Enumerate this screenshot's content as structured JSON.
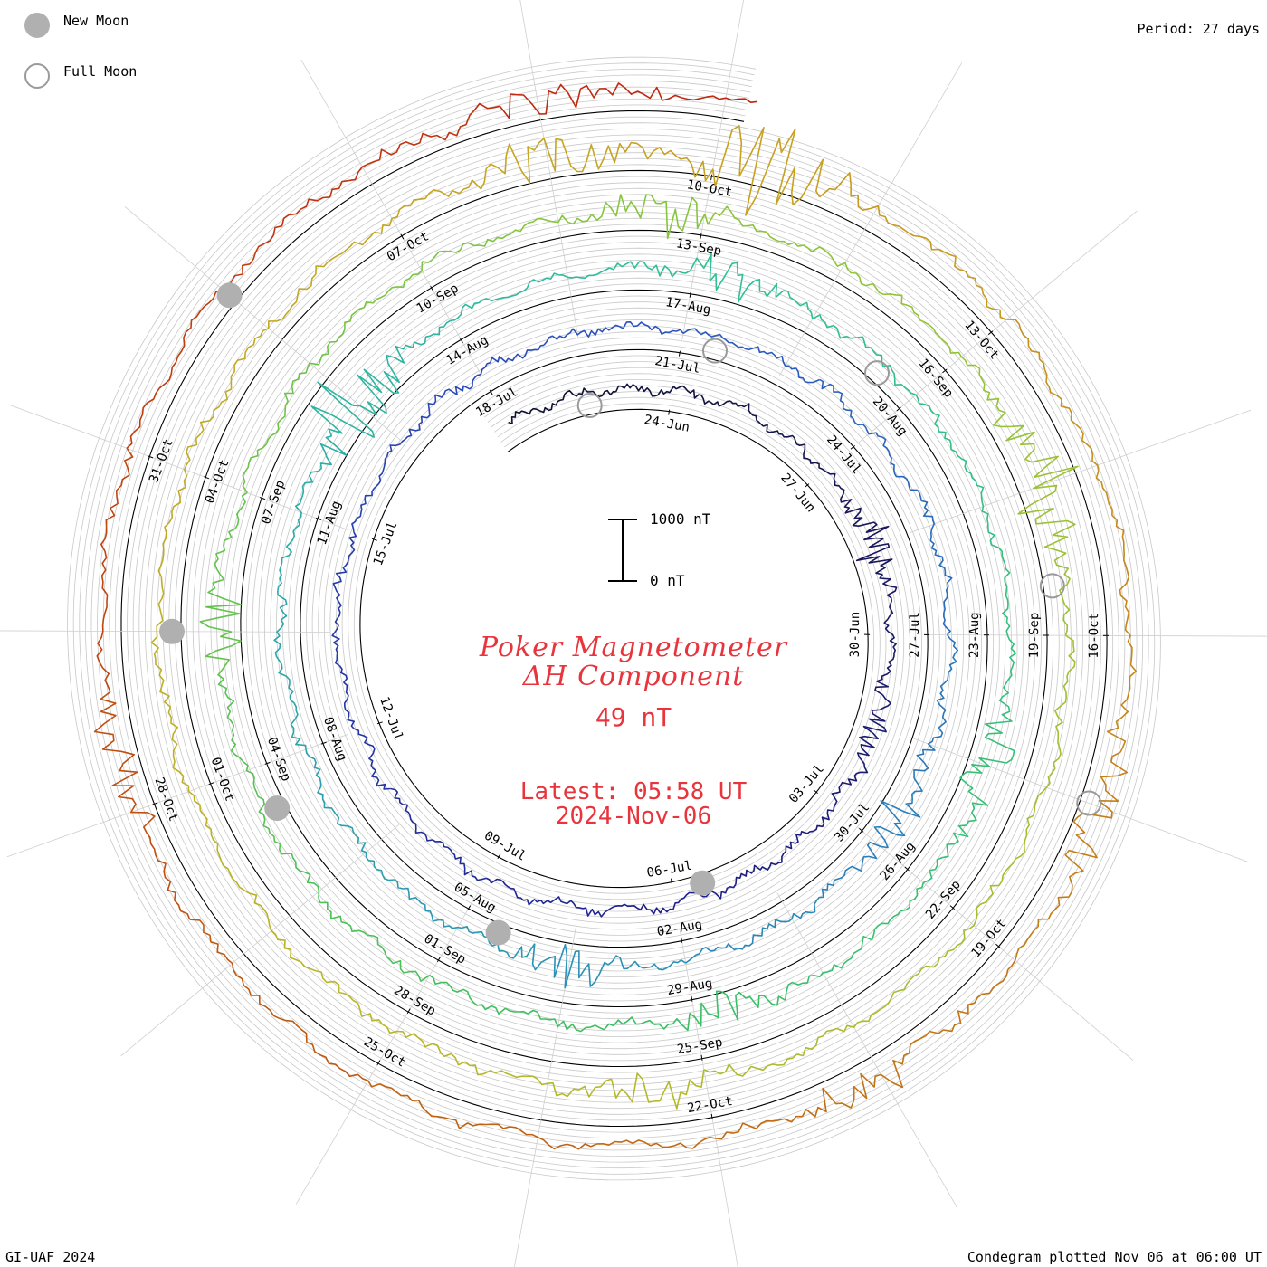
{
  "legend": {
    "new_moon_label": "New Moon",
    "full_moon_label": "Full Moon",
    "new_moon_color": "#b0b0b0",
    "full_moon_color": "#9a9a9a"
  },
  "header": {
    "period_label": "Period: 27 days"
  },
  "footer": {
    "credit": "GI-UAF 2024",
    "plotted": "Condegram plotted Nov 06 at 06:00 UT"
  },
  "center": {
    "title_line1": "Poker Magnetometer",
    "title_line2": "ΔH Component",
    "value": "49 nT",
    "latest_time": "Latest: 05:58 UT",
    "latest_date": "2024-Nov-06",
    "text_color": "#e8343c"
  },
  "chart_data": {
    "type": "line",
    "period_days": 27,
    "scale_bar": {
      "top_label": "1000 nT",
      "bottom_label": "0 nT",
      "value_nT": 1000
    },
    "start_date": "2024-06-21",
    "end_date": "2024-11-06",
    "series": [
      {
        "color": "#111133",
        "ticks": [
          "24-Jun",
          "27-Jun",
          "30-Jun",
          "03-Jul",
          "06-Jul",
          "09-Jul",
          "12-Jul",
          "15-Jul",
          "18-Jul"
        ]
      },
      {
        "color": "#2a3aa8",
        "ticks": [
          "21-Jul",
          "24-Jul",
          "27-Jul",
          "30-Jul",
          "02-Aug",
          "05-Aug",
          "08-Aug",
          "11-Aug",
          "14-Aug"
        ]
      },
      {
        "color": "#2a8fb8",
        "ticks": [
          "17-Aug",
          "20-Aug",
          "23-Aug",
          "26-Aug",
          "29-Aug",
          "01-Sep",
          "04-Sep",
          "07-Sep",
          "10-Sep"
        ]
      },
      {
        "color": "#6cc13a",
        "ticks": [
          "13-Sep",
          "16-Sep",
          "19-Sep",
          "22-Sep",
          "25-Sep",
          "28-Sep",
          "01-Oct",
          "04-Oct",
          "07-Oct"
        ]
      },
      {
        "color": "#c9a020",
        "ticks": [
          "10-Oct",
          "13-Oct",
          "16-Oct",
          "19-Oct",
          "22-Oct",
          "25-Oct",
          "28-Oct",
          "31-Oct"
        ]
      }
    ],
    "color_stops": [
      "#111133",
      "#1f1f8a",
      "#2a4fc0",
      "#2a8fb8",
      "#2fbf9a",
      "#3ac060",
      "#8cc63a",
      "#b7b828",
      "#c9a020",
      "#c06010",
      "#c02010"
    ],
    "new_moons": [
      "2024-07-05",
      "2024-08-04",
      "2024-09-03",
      "2024-10-02",
      "2024-11-01"
    ],
    "full_moons": [
      "2024-06-22",
      "2024-07-21",
      "2024-08-19",
      "2024-09-18",
      "2024-10-17"
    ],
    "disturbances": [
      {
        "date": "2024-06-28",
        "level": 0.3
      },
      {
        "date": "2024-07-01",
        "level": 0.25
      },
      {
        "date": "2024-07-29",
        "level": 0.35
      },
      {
        "date": "2024-08-03",
        "level": 0.3
      },
      {
        "date": "2024-08-12",
        "level": 0.85
      },
      {
        "date": "2024-08-17",
        "level": 0.35
      },
      {
        "date": "2024-08-24",
        "level": 0.35
      },
      {
        "date": "2024-08-28",
        "level": 0.3
      },
      {
        "date": "2024-09-05",
        "level": 0.3
      },
      {
        "date": "2024-09-12",
        "level": 0.35
      },
      {
        "date": "2024-09-17",
        "level": 0.75
      },
      {
        "date": "2024-09-25",
        "level": 0.3
      },
      {
        "date": "2024-10-08",
        "level": 0.4
      },
      {
        "date": "2024-10-10",
        "level": 1.0
      },
      {
        "date": "2024-10-17",
        "level": 0.4
      },
      {
        "date": "2024-10-20",
        "level": 0.35
      },
      {
        "date": "2024-10-28",
        "level": 0.3
      },
      {
        "date": "2024-11-04",
        "level": 0.3
      }
    ]
  }
}
